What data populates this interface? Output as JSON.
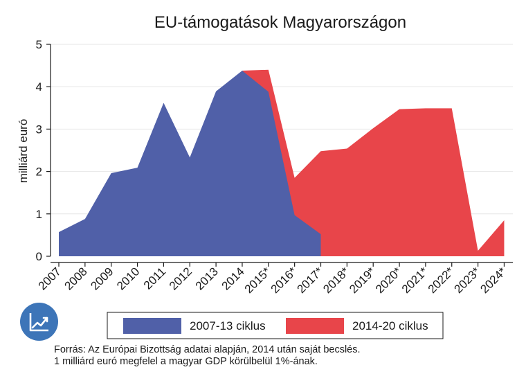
{
  "chart_data": {
    "type": "area",
    "title": "EU-támogatások Magyarországon",
    "ylabel": "milliárd euró",
    "xlabel": "",
    "ylim": [
      0,
      5
    ],
    "yticks": [
      "0",
      "1",
      "2",
      "3",
      "4",
      "5"
    ],
    "categories": [
      "2007",
      "2008",
      "2009",
      "2010",
      "2011",
      "2012",
      "2013",
      "2014",
      "2015*",
      "2016*",
      "2017*",
      "2018*",
      "2019*",
      "2020*",
      "2021*",
      "2022*",
      "2023*",
      "2024*"
    ],
    "series": [
      {
        "name": "2007-13 ciklus",
        "color": "#5060a8",
        "values": [
          0.57,
          0.88,
          1.96,
          2.09,
          3.62,
          2.33,
          3.89,
          4.38,
          3.88,
          0.97,
          0.52,
          null,
          null,
          null,
          null,
          null,
          null,
          null
        ]
      },
      {
        "name": "2014-20 ciklus",
        "color": "#e8454a",
        "values": [
          null,
          null,
          null,
          null,
          null,
          null,
          null,
          4.38,
          4.4,
          1.85,
          2.48,
          2.54,
          3.02,
          3.47,
          3.49,
          3.49,
          0.13,
          0.85
        ]
      }
    ],
    "grid": true,
    "legend": "bottom"
  },
  "footnotes": {
    "line1": "Forrás: Az Európai Bizottság adatai alapján, 2014 után saját becslés.",
    "line2": "1 milliárd euró megfelel a magyar GDP körülbelül 1%-ának."
  },
  "logo": {
    "icon": "trend-chart-icon",
    "color": "#3d75b8"
  }
}
